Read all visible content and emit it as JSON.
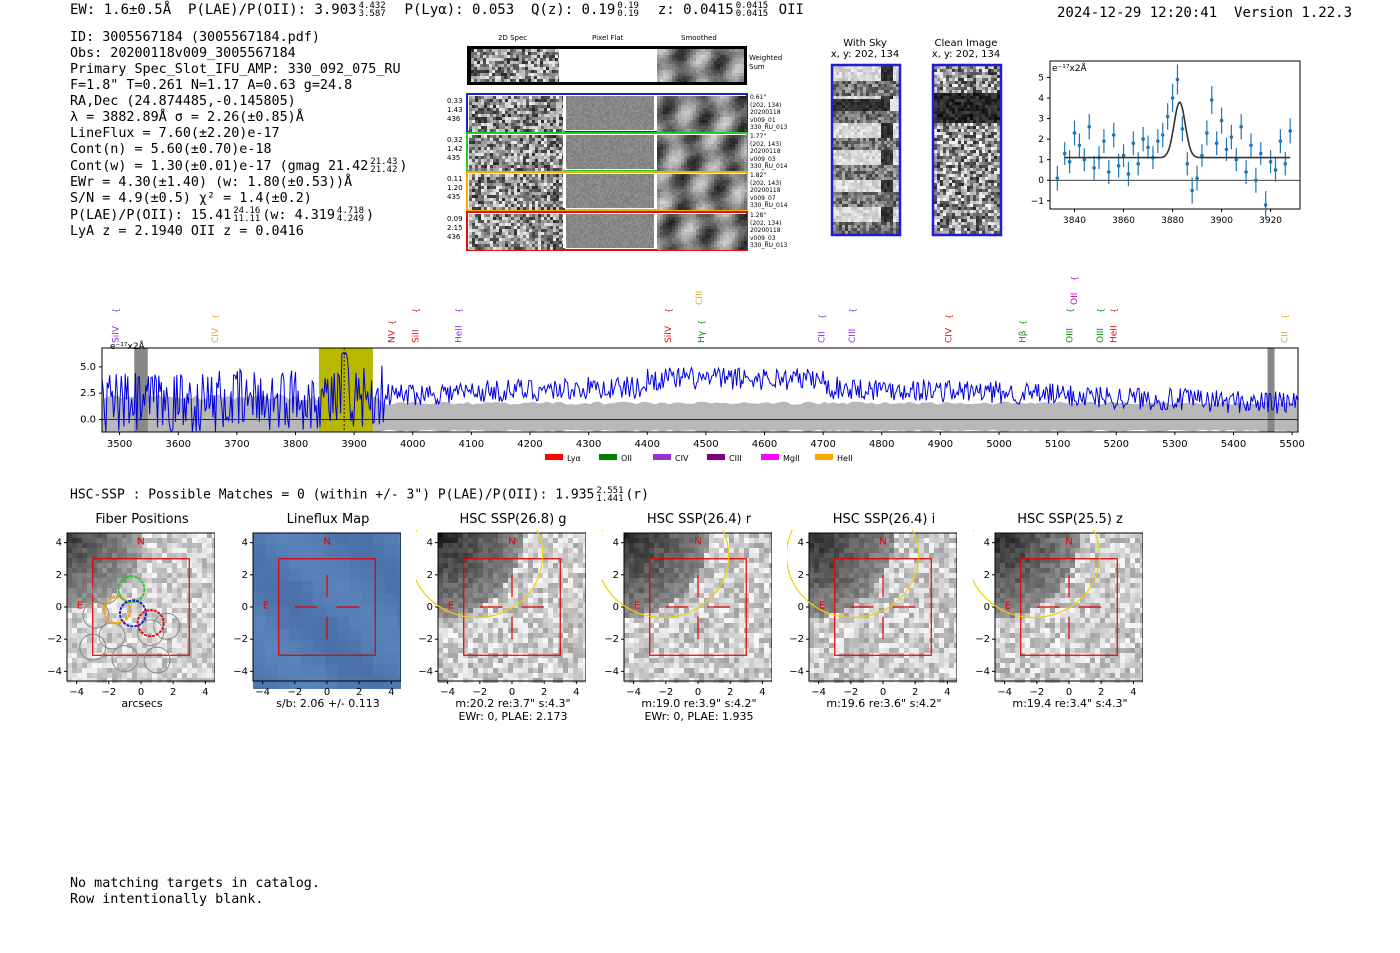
{
  "header": {
    "ew": "EW: 1.6±0.5Å",
    "plae_label": "P(LAE)/P(OII): 3.903",
    "plae_hi": "4.432",
    "plae_lo": "3.587",
    "plya": "P(Lyα): 0.053",
    "qz_label": "Q(z): 0.19",
    "qz_hi": "0.19",
    "qz_lo": "0.19",
    "z_label": "z: 0.0415",
    "z_hi": "0.0415",
    "z_lo": "0.0415",
    "z_type": "OII",
    "timestamp": "2024-12-29 12:20:41",
    "version": "Version 1.22.3"
  },
  "info": {
    "id": "ID: 3005567184 (3005567184.pdf)",
    "obs": "Obs: 20200118v009_3005567184",
    "primary": "Primary Spec_Slot_IFU_AMP: 330_092_075_RU",
    "fibers": "F=1.8\"  T=0.261  N=1.17  A=0.63  g=24.8",
    "radec": "RA,Dec (24.874485,-0.145805)",
    "lambda": "λ = 3882.89Å  σ = 2.26(±0.85)Å",
    "lineflux": "LineFlux = 7.60(±2.20)e-17",
    "contn": "Cont(n) = 5.60(±0.70)e-18",
    "contw_label": "Cont(w) = 1.30(±0.01)e-17 (gmag 21.42",
    "contw_hi": "21.43",
    "contw_lo": "21.42",
    "contw_end": ")",
    "ewr": "EWr = 4.30(±1.40) (w: 1.80(±0.53))Å",
    "sn": "S/N = 4.9(±0.5)  χ² = 1.4(±0.2)",
    "plae2_label": "P(LAE)/P(OII): 15.41",
    "plae2_hi": "24.16",
    "plae2_lo": "11.11",
    "plae2_mid": "(w: 4.319",
    "plae2_whi": "4.718",
    "plae2_wlo": "4.249",
    "plae2_end": ")",
    "lya": "LyA z = 2.1940  OII z = 0.0416"
  },
  "fiber_panel": {
    "col_titles": [
      "2D Spec",
      "Pixel Flat",
      "Smoothed"
    ],
    "weighted_sum": [
      "Weighted",
      "Sum"
    ],
    "rows": [
      {
        "color": "#1f1fd0",
        "left": [
          "0.33",
          "1.43",
          "436"
        ],
        "right": [
          "0.61\"",
          "(202, 134)",
          "20200118",
          "v009_01",
          "330_RU_013"
        ]
      },
      {
        "color": "#22cc22",
        "left": [
          "0.32",
          "1.42",
          "435"
        ],
        "right": [
          "1.77\"",
          "(202, 143)",
          "20200118",
          "v009_03",
          "330_RU_014"
        ]
      },
      {
        "color": "#ffaa00",
        "left": [
          "0.11",
          "1.20",
          "435"
        ],
        "right": [
          "1.82\"",
          "(202, 143)",
          "20200118",
          "v009_07",
          "330_RU_014"
        ]
      },
      {
        "color": "#dd1111",
        "left": [
          "0.09",
          "2.15",
          "436"
        ],
        "right": [
          "1.28\"",
          "(202, 134)",
          "20200118",
          "v009_03",
          "330_RU_013"
        ]
      }
    ]
  },
  "sky_panels": {
    "with_sky": {
      "title": "With Sky",
      "coords": "x, y: 202, 134"
    },
    "clean": {
      "title": "Clean Image",
      "coords": "x, y: 202, 134"
    }
  },
  "zoom_chart": {
    "unit": "e⁻¹⁷x2Å",
    "x_ticks": [
      3840,
      3860,
      3880,
      3900,
      3920
    ],
    "y_ticks": [
      -1,
      0,
      1,
      2,
      3,
      4,
      5
    ],
    "xlim": [
      3830,
      3932
    ],
    "ylim": [
      -1.4,
      5.8
    ],
    "points": [
      [
        3833,
        0.1
      ],
      [
        3836,
        1.3
      ],
      [
        3838,
        0.9
      ],
      [
        3840,
        2.3
      ],
      [
        3842,
        1.7
      ],
      [
        3844,
        1.0
      ],
      [
        3846,
        2.6
      ],
      [
        3848,
        0.6
      ],
      [
        3850,
        1.1
      ],
      [
        3852,
        1.9
      ],
      [
        3854,
        0.4
      ],
      [
        3856,
        2.2
      ],
      [
        3858,
        0.7
      ],
      [
        3860,
        1.2
      ],
      [
        3862,
        0.3
      ],
      [
        3864,
        1.8
      ],
      [
        3866,
        0.8
      ],
      [
        3868,
        2.0
      ],
      [
        3870,
        1.6
      ],
      [
        3872,
        1.1
      ],
      [
        3874,
        1.9
      ],
      [
        3876,
        2.2
      ],
      [
        3878,
        3.1
      ],
      [
        3880,
        4.0
      ],
      [
        3882,
        4.9
      ],
      [
        3884,
        2.5
      ],
      [
        3886,
        0.8
      ],
      [
        3888,
        -0.5
      ],
      [
        3890,
        0.1
      ],
      [
        3892,
        1.2
      ],
      [
        3894,
        2.3
      ],
      [
        3896,
        3.9
      ],
      [
        3898,
        1.8
      ],
      [
        3900,
        2.9
      ],
      [
        3902,
        1.5
      ],
      [
        3904,
        2.1
      ],
      [
        3906,
        1.0
      ],
      [
        3908,
        2.6
      ],
      [
        3910,
        0.4
      ],
      [
        3912,
        1.7
      ],
      [
        3914,
        0.0
      ],
      [
        3916,
        1.3
      ],
      [
        3918,
        -1.2
      ],
      [
        3920,
        0.9
      ],
      [
        3922,
        0.5
      ],
      [
        3924,
        1.9
      ],
      [
        3926,
        0.8
      ],
      [
        3928,
        2.4
      ]
    ],
    "fit": {
      "baseline": 1.1,
      "amplitude": 2.7,
      "center": 3882.9,
      "sigma": 2.26
    }
  },
  "spectrum": {
    "unit": "e⁻¹⁷x2Å",
    "x_ticks": [
      3500,
      3600,
      3700,
      3800,
      3900,
      4000,
      4100,
      4200,
      4300,
      4400,
      4500,
      4600,
      4700,
      4800,
      4900,
      5000,
      5100,
      5200,
      5300,
      5400,
      5500
    ],
    "y_ticks": [
      "0.0",
      "2.5",
      "5.0"
    ],
    "y_tick_values": [
      0,
      2.5,
      5
    ],
    "xlim": [
      3470,
      5510
    ],
    "ylim": [
      -1.2,
      6.8
    ],
    "highlight_band": [
      3840,
      3932
    ],
    "line_marker": 3883,
    "lines": [
      {
        "name": "SiIV",
        "wave": 3493,
        "color": "#8a2be2",
        "level": 0
      },
      {
        "name": "CIV",
        "wave": 3663,
        "color": "#e6a817",
        "level": 0
      },
      {
        "name": "NV",
        "wave": 3964,
        "color": "#dd1111",
        "level": 0
      },
      {
        "name": "SiII",
        "wave": 4005,
        "color": "#dd1111",
        "level": 0
      },
      {
        "name": "HeII",
        "wave": 4078,
        "color": "#8a2be2",
        "level": 0
      },
      {
        "name": "SiIV",
        "wave": 4435,
        "color": "#dd1111",
        "level": 0
      },
      {
        "name": "CIII",
        "wave": 4488,
        "color": "#e6a817",
        "level": 1
      },
      {
        "name": "Hγ",
        "wave": 4492,
        "color": "#118811",
        "level": 0
      },
      {
        "name": "CII",
        "wave": 4697,
        "color": "#8a2be2",
        "level": 0
      },
      {
        "name": "CIII",
        "wave": 4749,
        "color": "#8a2be2",
        "level": 0
      },
      {
        "name": "CIV",
        "wave": 4914,
        "color": "#dd1111",
        "level": 0
      },
      {
        "name": "Hβ",
        "wave": 5040,
        "color": "#118811",
        "level": 0
      },
      {
        "name": "OII",
        "wave": 5128,
        "color": "#cc00cc",
        "level": 1
      },
      {
        "name": "OIII",
        "wave": 5120,
        "color": "#118811",
        "level": 0
      },
      {
        "name": "OIII",
        "wave": 5172,
        "color": "#118811",
        "level": 0
      },
      {
        "name": "HeII",
        "wave": 5195,
        "color": "#dd1111",
        "level": 0
      },
      {
        "name": "CII",
        "wave": 5487,
        "color": "#e6a817",
        "level": 0
      }
    ],
    "legend": [
      {
        "name": "Lyα",
        "color": "#ff0000"
      },
      {
        "name": "OII",
        "color": "#008000"
      },
      {
        "name": "CIV",
        "color": "#9932cc"
      },
      {
        "name": "CIII",
        "color": "#800080"
      },
      {
        "name": "MgII",
        "color": "#ff00ff"
      },
      {
        "name": "HeII",
        "color": "#ffa500"
      }
    ]
  },
  "hsc": {
    "header_label": "HSC-SSP : Possible Matches = 0 (within +/- 3\")  P(LAE)/P(OII): 1.935",
    "header_hi": "2.551",
    "header_lo": "1.441",
    "header_end": "(r)",
    "panels": [
      {
        "title": "Fiber Positions",
        "lines": [
          "arcsecs"
        ]
      },
      {
        "title": "Lineflux Map",
        "lines": [
          "s/b: 2.06 +/- 0.113"
        ]
      },
      {
        "title": "HSC SSP(26.8) g",
        "lines": [
          "m:20.2  re:3.7\"  s:4.3\"",
          "EWr: 0, PLAE: 2.173"
        ]
      },
      {
        "title": "HSC SSP(26.4) r",
        "lines": [
          "m:19.0  re:3.9\"  s:4.2\"",
          "EWr: 0, PLAE: 1.935"
        ]
      },
      {
        "title": "HSC SSP(26.4) i",
        "lines": [
          "m:19.6  re:3.6\"  s:4.2\""
        ]
      },
      {
        "title": "HSC SSP(25.5) z",
        "lines": [
          "m:19.4  re:3.4\"  s:4.3\""
        ]
      }
    ],
    "tick_labels": [
      "−4",
      "−2",
      "0",
      "2",
      "4"
    ],
    "compass_n": "N",
    "compass_e": "E"
  },
  "footer": {
    "line1": "No matching targets in catalog.",
    "line2": "Row intentionally blank."
  }
}
